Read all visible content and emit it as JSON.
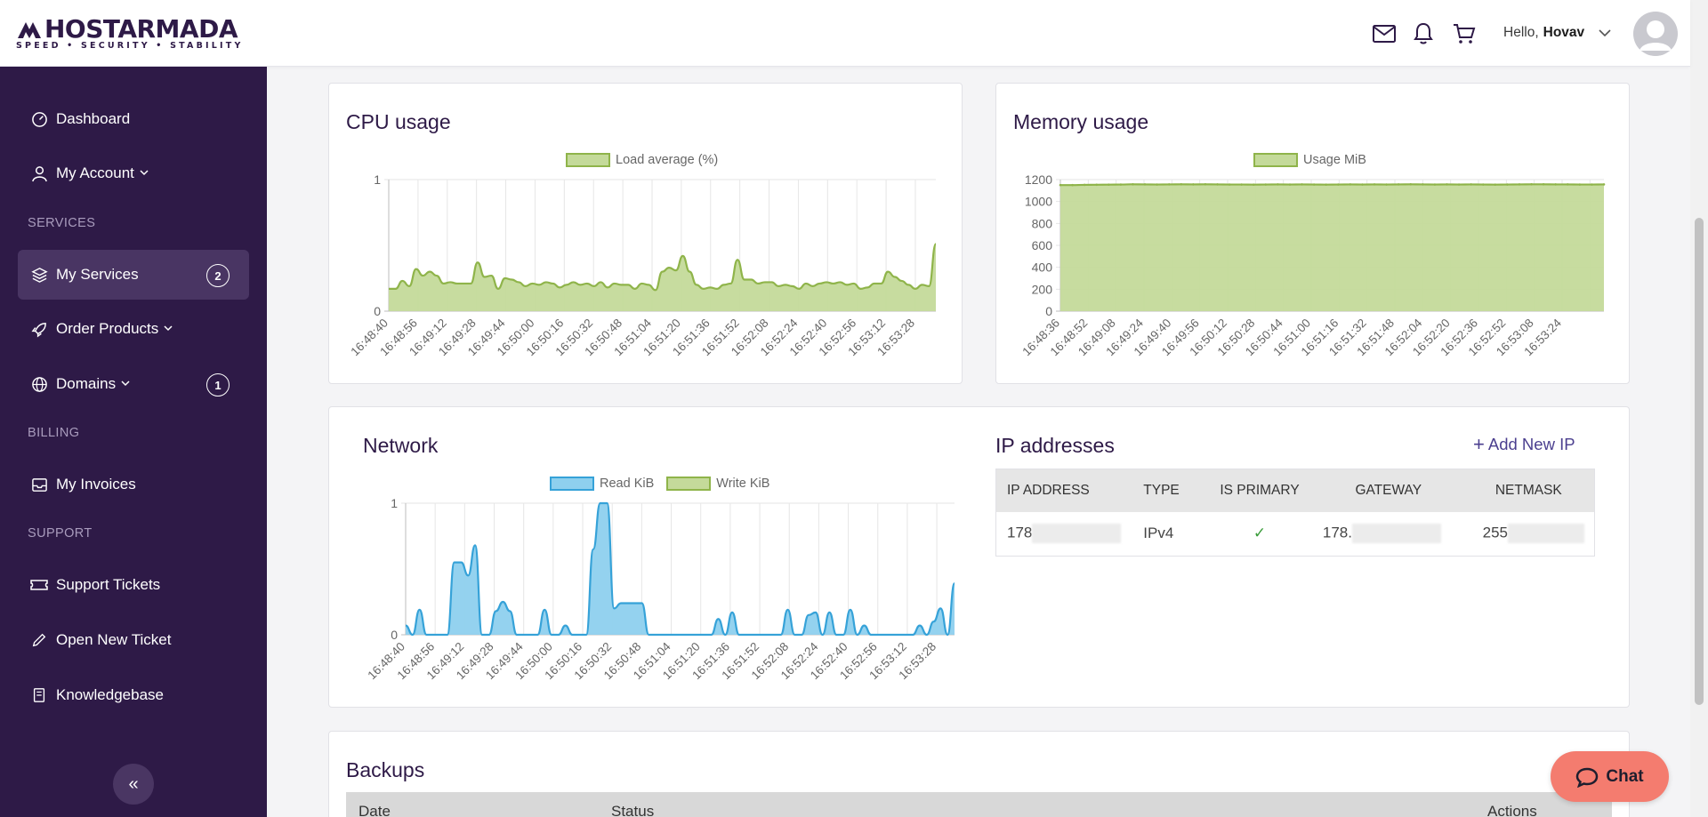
{
  "header": {
    "logo_text": "HOSTARMADA",
    "logo_tagline": "SPEED • SECURITY • STABILITY",
    "greeting_prefix": "Hello,",
    "user_name": "Hovav"
  },
  "sidebar": {
    "items": [
      {
        "label": "Dashboard",
        "icon": "dashboard-icon"
      },
      {
        "label": "My Account",
        "icon": "user-icon"
      },
      {
        "label": "My Services",
        "icon": "layers-icon",
        "badge": "2"
      },
      {
        "label": "Order Products",
        "icon": "rocket-icon"
      },
      {
        "label": "Domains",
        "icon": "globe-icon",
        "badge": "1"
      },
      {
        "label": "My Invoices",
        "icon": "inbox-icon"
      },
      {
        "label": "Support Tickets",
        "icon": "ticket-icon"
      },
      {
        "label": "Open New Ticket",
        "icon": "pencil-icon"
      },
      {
        "label": "Knowledgebase",
        "icon": "book-icon"
      }
    ],
    "sections": {
      "services": "SERVICES",
      "billing": "BILLING",
      "support": "SUPPORT"
    },
    "collapse_glyph": "«"
  },
  "cpu": {
    "title": "CPU usage",
    "chart_data": {
      "type": "area",
      "title": "",
      "series": [
        {
          "name": "Load average (%)",
          "color": "#8fb44a",
          "values": [
            0.17,
            0.17,
            0.23,
            0.19,
            0.32,
            0.27,
            0.3,
            0.27,
            0.21,
            0.22,
            0.21,
            0.21,
            0.21,
            0.37,
            0.26,
            0.27,
            0.17,
            0.25,
            0.24,
            0.22,
            0.19,
            0.21,
            0.2,
            0.22,
            0.21,
            0.18,
            0.2,
            0.22,
            0.2,
            0.21,
            0.19,
            0.22,
            0.18,
            0.21,
            0.2,
            0.2,
            0.17,
            0.21,
            0.2,
            0.16,
            0.3,
            0.33,
            0.31,
            0.42,
            0.3,
            0.2,
            0.17,
            0.18,
            0.17,
            0.2,
            0.21,
            0.39,
            0.24,
            0.24,
            0.21,
            0.22,
            0.22,
            0.19,
            0.2,
            0.19,
            0.17,
            0.21,
            0.19,
            0.21,
            0.22,
            0.21,
            0.22,
            0.2,
            0.21,
            0.17,
            0.18,
            0.21,
            0.21,
            0.3,
            0.26,
            0.23,
            0.2,
            0.17,
            0.2,
            0.19,
            0.51
          ]
        }
      ],
      "x_ticks": [
        "16:48:40",
        "16:48:56",
        "16:49:12",
        "16:49:28",
        "16:49:44",
        "16:50:00",
        "16:50:16",
        "16:50:32",
        "16:50:48",
        "16:51:04",
        "16:51:20",
        "16:51:36",
        "16:51:52",
        "16:52:08",
        "16:52:24",
        "16:52:40",
        "16:52:56",
        "16:53:12",
        "16:53:28"
      ],
      "y_ticks": [
        "0",
        "1"
      ],
      "ylim": [
        0,
        1
      ],
      "grid": true,
      "legend": "top"
    }
  },
  "memory": {
    "title": "Memory usage",
    "chart_data": {
      "type": "area",
      "title": "",
      "series": [
        {
          "name": "Usage MiB",
          "color": "#8fb44a",
          "values": [
            1150,
            1150,
            1152,
            1153,
            1154,
            1155,
            1157,
            1156,
            1155,
            1156,
            1157,
            1156,
            1157,
            1156,
            1155,
            1155,
            1154,
            1155,
            1156,
            1155,
            1156,
            1155,
            1154,
            1155,
            1156,
            1155,
            1156,
            1155,
            1156,
            1157,
            1156,
            1155,
            1156,
            1155,
            1156,
            1155,
            1154,
            1155,
            1156,
            1157,
            1157,
            1156,
            1156,
            1155,
            1155,
            1156
          ]
        }
      ],
      "x_ticks": [
        "16:48:36",
        "16:48:52",
        "16:49:08",
        "16:49:24",
        "16:49:40",
        "16:49:56",
        "16:50:12",
        "16:50:28",
        "16:50:44",
        "16:51:00",
        "16:51:16",
        "16:51:32",
        "16:51:48",
        "16:52:04",
        "16:52:20",
        "16:52:36",
        "16:52:52",
        "16:53:08",
        "16:53:24"
      ],
      "y_ticks": [
        "0",
        "200",
        "400",
        "600",
        "800",
        "1000",
        "1200"
      ],
      "ylim": [
        0,
        1200
      ],
      "grid": true,
      "legend": "top"
    }
  },
  "network": {
    "title": "Network",
    "chart_data": {
      "type": "area",
      "title": "",
      "series": [
        {
          "name": "Read KiB",
          "color": "#36a2d8",
          "fill": "#8ed0ee",
          "values": [
            0.07,
            0,
            0.19,
            0,
            0,
            0,
            0,
            0.55,
            0.55,
            0.45,
            0.68,
            0,
            0,
            0.18,
            0.25,
            0.18,
            0,
            0,
            0,
            0,
            0.19,
            0,
            0,
            0.07,
            0,
            0,
            0,
            0.65,
            1,
            1,
            0.2,
            0.24,
            0.24,
            0.24,
            0.24,
            0,
            0,
            0,
            0,
            0,
            0,
            0,
            0,
            0,
            0,
            0.12,
            0,
            0.17,
            0,
            0,
            0,
            0,
            0,
            0,
            0,
            0.19,
            0,
            0,
            0.15,
            0.17,
            0,
            0.17,
            0,
            0,
            0.19,
            0,
            0.07,
            0,
            0,
            0,
            0,
            0,
            0,
            0,
            0.07,
            0,
            0.1,
            0.2,
            0,
            0.39
          ]
        },
        {
          "name": "Write KiB",
          "color": "#8fb44a",
          "fill": "#c4da9a",
          "values": []
        }
      ],
      "x_ticks": [
        "16:48:40",
        "16:48:56",
        "16:49:12",
        "16:49:28",
        "16:49:44",
        "16:50:00",
        "16:50:16",
        "16:50:32",
        "16:50:48",
        "16:51:04",
        "16:51:20",
        "16:51:36",
        "16:51:52",
        "16:52:08",
        "16:52:24",
        "16:52:40",
        "16:52:56",
        "16:53:12",
        "16:53:28"
      ],
      "y_ticks": [
        "0",
        "1"
      ],
      "ylim": [
        0,
        1
      ],
      "grid": true,
      "legend": "top"
    }
  },
  "ip": {
    "title": "IP addresses",
    "add_label": "Add New IP",
    "columns": [
      "IP ADDRESS",
      "TYPE",
      "IS PRIMARY",
      "GATEWAY",
      "NETMASK"
    ],
    "rows": [
      {
        "ip": "178",
        "type": "IPv4",
        "primary": "✓",
        "gateway": "178.",
        "netmask": "255"
      }
    ]
  },
  "backups": {
    "title": "Backups",
    "columns": [
      "Date",
      "Status",
      "Actions"
    ]
  },
  "chat": {
    "label": "Chat"
  },
  "colors": {
    "brand": "#2e1a47",
    "sidebar_active": "#493563",
    "accent_green": "#8fb44a",
    "accent_blue": "#36a2d8",
    "chat": "#f47c6f"
  }
}
